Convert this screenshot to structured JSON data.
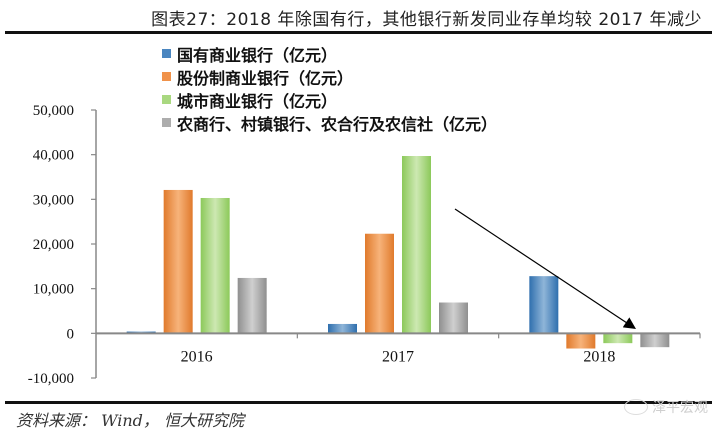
{
  "header": {
    "title": "图表27：2018 年除国有行，其他银行新发同业存单均较 2017 年减少"
  },
  "footer": {
    "source": "资料来源： Wind， 恒大研究院",
    "watermark": "泽平宏观"
  },
  "chart_data": {
    "type": "bar",
    "title": "图表27：2018 年除国有行，其他银行新发同业存单均较 2017 年减少",
    "xlabel": "",
    "ylabel": "",
    "categories": [
      "2016",
      "2017",
      "2018"
    ],
    "series": [
      {
        "name": "国有商业银行（亿元）",
        "color": "#3a7dbf",
        "values": [
          400,
          2100,
          12800
        ]
      },
      {
        "name": "股份制商业银行（亿元）",
        "color": "#ee8a3c",
        "values": [
          32100,
          22300,
          -3400
        ]
      },
      {
        "name": "城市商业银行（亿元）",
        "color": "#9fd46e",
        "values": [
          30300,
          39700,
          -2200
        ]
      },
      {
        "name": "农商行、村镇银行、农合行及农信社（亿元）",
        "color": "#a6a6a6",
        "values": [
          12400,
          6900,
          -3100
        ]
      }
    ],
    "ylim": [
      -10000,
      50000
    ],
    "yticks": [
      "50,000",
      "40,000",
      "30,000",
      "20,000",
      "10,000",
      "0",
      "-10,000"
    ],
    "grid": false,
    "legend_position": "top-left inside",
    "annotations": [
      {
        "type": "arrow",
        "from": "above 2017 gray bar",
        "to": "2018 near zero line",
        "meaning": "downward trend"
      }
    ]
  }
}
